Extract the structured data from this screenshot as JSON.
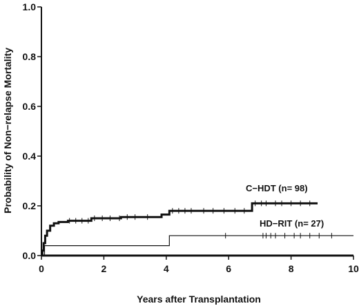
{
  "chart_data": {
    "type": "line",
    "title": "",
    "xlabel": "Years after Transplantation",
    "ylabel": "Probability of Non−relapse Mortality",
    "xlim": [
      0,
      10
    ],
    "ylim": [
      0,
      1.0
    ],
    "x_ticks": [
      {
        "value": 0,
        "label": "0"
      },
      {
        "value": 2,
        "label": "2"
      },
      {
        "value": 4,
        "label": "4"
      },
      {
        "value": 6,
        "label": "6"
      },
      {
        "value": 8,
        "label": "8"
      },
      {
        "value": 10,
        "label": "10"
      }
    ],
    "y_ticks": [
      {
        "value": 0,
        "label": "0.0"
      },
      {
        "value": 0.2,
        "label": "0.2"
      },
      {
        "value": 0.4,
        "label": "0.4"
      },
      {
        "value": 0.6,
        "label": "0.6"
      },
      {
        "value": 0.8,
        "label": "0.8"
      },
      {
        "value": 1.0,
        "label": "1.0"
      }
    ],
    "grid": false,
    "series": [
      {
        "name": "C−HDT (n= 98)",
        "style": "step",
        "color": "#111111",
        "steps": [
          [
            0.0,
            0.0
          ],
          [
            0.03,
            0.02
          ],
          [
            0.07,
            0.05
          ],
          [
            0.12,
            0.08
          ],
          [
            0.18,
            0.1
          ],
          [
            0.28,
            0.12
          ],
          [
            0.4,
            0.13
          ],
          [
            0.55,
            0.135
          ],
          [
            0.85,
            0.14
          ],
          [
            1.6,
            0.15
          ],
          [
            2.55,
            0.155
          ],
          [
            3.85,
            0.165
          ],
          [
            4.1,
            0.18
          ],
          [
            6.75,
            0.21
          ],
          [
            8.85,
            0.21
          ]
        ],
        "censor_x": [
          0.9,
          1.1,
          1.3,
          1.5,
          1.7,
          1.95,
          2.2,
          2.5,
          2.75,
          3.0,
          3.4,
          4.2,
          4.4,
          4.6,
          4.8,
          5.2,
          5.5,
          5.85,
          6.2,
          6.5,
          6.85,
          7.05,
          7.2,
          7.5,
          7.7,
          8.0,
          8.3,
          8.6
        ]
      },
      {
        "name": "HD−RIT (n= 27)",
        "style": "step",
        "color": "#111111",
        "steps": [
          [
            0.0,
            0.0
          ],
          [
            0.1,
            0.04
          ],
          [
            4.1,
            0.08
          ],
          [
            10.0,
            0.08
          ]
        ],
        "censor_x": [
          5.9,
          7.1,
          7.2,
          7.35,
          7.5,
          7.8,
          8.1,
          8.3,
          8.6,
          8.9,
          9.3
        ]
      }
    ]
  }
}
